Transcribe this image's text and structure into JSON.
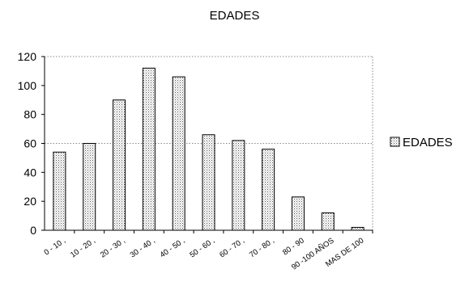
{
  "chart_data": {
    "type": "bar",
    "title": "EDADES",
    "categories": [
      "0 - 10 ,",
      "10 - 20 ,",
      "20 - 30 ,",
      "30 - 40 ,",
      "40 - 50 ,",
      "50 - 60 ,",
      "60 - 70 ,",
      "70 - 80 ,",
      "80 - 90",
      "90 -100 AÑOS",
      "MAS DE 100"
    ],
    "series": [
      {
        "name": "EDADES",
        "values": [
          54,
          60,
          90,
          112,
          106,
          66,
          62,
          56,
          23,
          12,
          2
        ]
      }
    ],
    "ylim": [
      0,
      120
    ],
    "yticks": [
      0,
      20,
      40,
      60,
      80,
      100,
      120
    ],
    "grid": "dotted lines at 60 and 120",
    "legend_position": "right",
    "bar_fill": "dotted gray pattern"
  }
}
